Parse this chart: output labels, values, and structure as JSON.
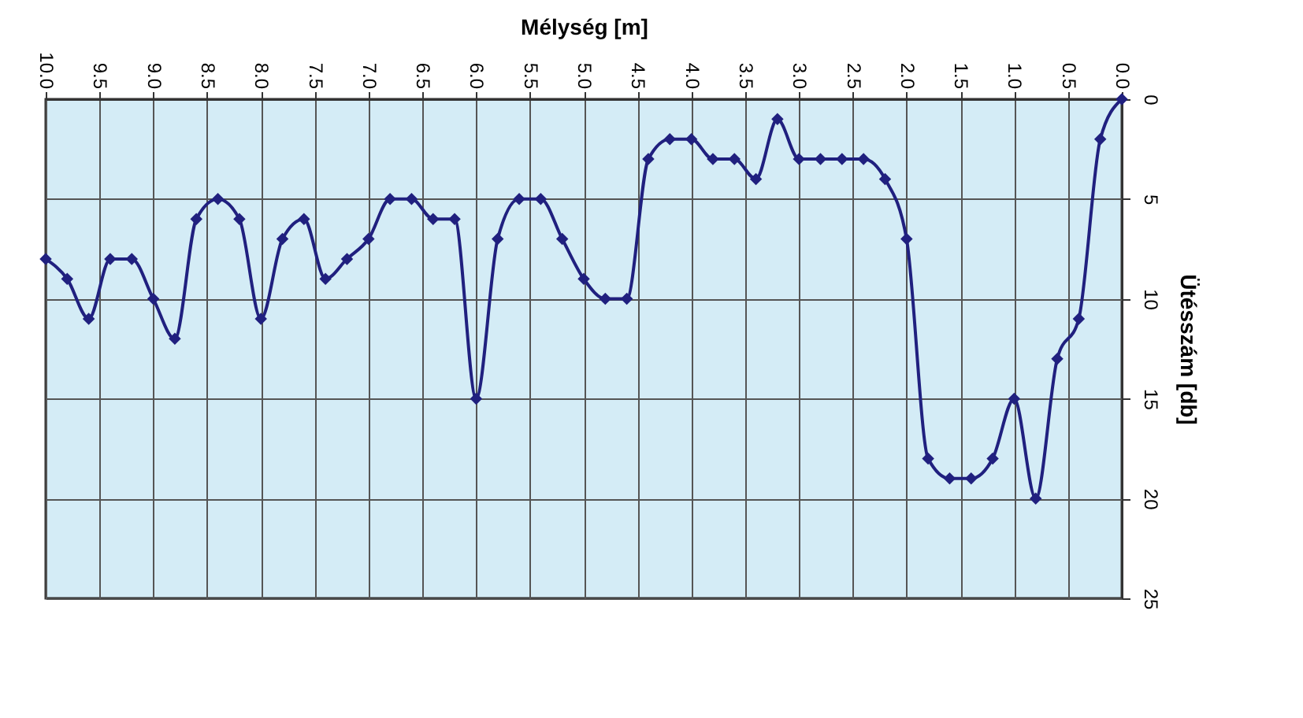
{
  "chart_data": {
    "type": "line",
    "xlabel": "Mélység [m]",
    "ylabel": "Ütésszám [db]",
    "x": [
      0.0,
      0.2,
      0.4,
      0.6,
      0.8,
      1.0,
      1.2,
      1.4,
      1.6,
      1.8,
      2.0,
      2.2,
      2.4,
      2.6,
      2.8,
      3.0,
      3.2,
      3.4,
      3.6,
      3.8,
      4.0,
      4.2,
      4.4,
      4.6,
      4.8,
      5.0,
      5.2,
      5.4,
      5.6,
      5.8,
      6.0,
      6.2,
      6.4,
      6.6,
      6.8,
      7.0,
      7.2,
      7.4,
      7.6,
      7.8,
      8.0,
      8.2,
      8.4,
      8.6,
      8.8,
      9.0,
      9.2,
      9.4,
      9.6,
      9.8,
      10.0
    ],
    "series": [
      {
        "color": "#20207f",
        "values": [
          0,
          2,
          11,
          13,
          20,
          15,
          18,
          19,
          19,
          18,
          7,
          4,
          3,
          3,
          3,
          3,
          1,
          4,
          3,
          3,
          2,
          2,
          3,
          10,
          10,
          9,
          7,
          5,
          5,
          7,
          15,
          6,
          6,
          5,
          5,
          7,
          8,
          9,
          6,
          7,
          11,
          6,
          5,
          6,
          12,
          10,
          8,
          8,
          11,
          9,
          8
        ]
      }
    ],
    "xlim": [
      10,
      0
    ],
    "xticks": [
      {
        "value": 10,
        "label": "10.0"
      },
      9.5,
      {
        "value": 9,
        "label": "9.0"
      },
      8.5,
      {
        "value": 8,
        "label": "8.0"
      },
      7.5,
      {
        "value": 7,
        "label": "7.0"
      },
      6.5,
      {
        "value": 6,
        "label": "6.0"
      },
      5.5,
      {
        "value": 5,
        "label": "5.0"
      },
      4.5,
      {
        "value": 4,
        "label": "4.0"
      },
      3.5,
      {
        "value": 3,
        "label": "3.0"
      },
      2.5,
      {
        "value": 2,
        "label": "2.0"
      },
      1.5,
      {
        "value": 1,
        "label": "1.0"
      },
      0.5,
      {
        "value": 0,
        "label": "0.0"
      }
    ],
    "ylim": [
      25,
      0
    ],
    "yticks": [
      0,
      5,
      10,
      15,
      20,
      25
    ],
    "grid": true,
    "marker": "diamond",
    "line_style": "solid"
  }
}
